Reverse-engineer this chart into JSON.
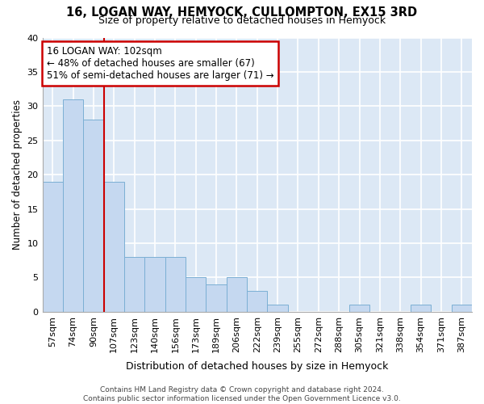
{
  "title": "16, LOGAN WAY, HEMYOCK, CULLOMPTON, EX15 3RD",
  "subtitle": "Size of property relative to detached houses in Hemyock",
  "xlabel": "Distribution of detached houses by size in Hemyock",
  "ylabel": "Number of detached properties",
  "categories": [
    "57sqm",
    "74sqm",
    "90sqm",
    "107sqm",
    "123sqm",
    "140sqm",
    "156sqm",
    "173sqm",
    "189sqm",
    "206sqm",
    "222sqm",
    "239sqm",
    "255sqm",
    "272sqm",
    "288sqm",
    "305sqm",
    "321sqm",
    "338sqm",
    "354sqm",
    "371sqm",
    "387sqm"
  ],
  "values": [
    19,
    31,
    28,
    19,
    8,
    8,
    8,
    5,
    4,
    5,
    3,
    1,
    0,
    0,
    0,
    1,
    0,
    0,
    1,
    0,
    1
  ],
  "bar_color": "#c5d8f0",
  "bar_edge_color": "#7bafd4",
  "background_color": "#dce8f5",
  "grid_color": "#ffffff",
  "vline_x": 3,
  "vline_color": "#cc0000",
  "annotation_text": "16 LOGAN WAY: 102sqm\n← 48% of detached houses are smaller (67)\n51% of semi-detached houses are larger (71) →",
  "annotation_box_color": "#ffffff",
  "annotation_box_edge": "#cc0000",
  "footer_text": "Contains HM Land Registry data © Crown copyright and database right 2024.\nContains public sector information licensed under the Open Government Licence v3.0.",
  "ylim": [
    0,
    40
  ],
  "yticks": [
    0,
    5,
    10,
    15,
    20,
    25,
    30,
    35,
    40
  ]
}
